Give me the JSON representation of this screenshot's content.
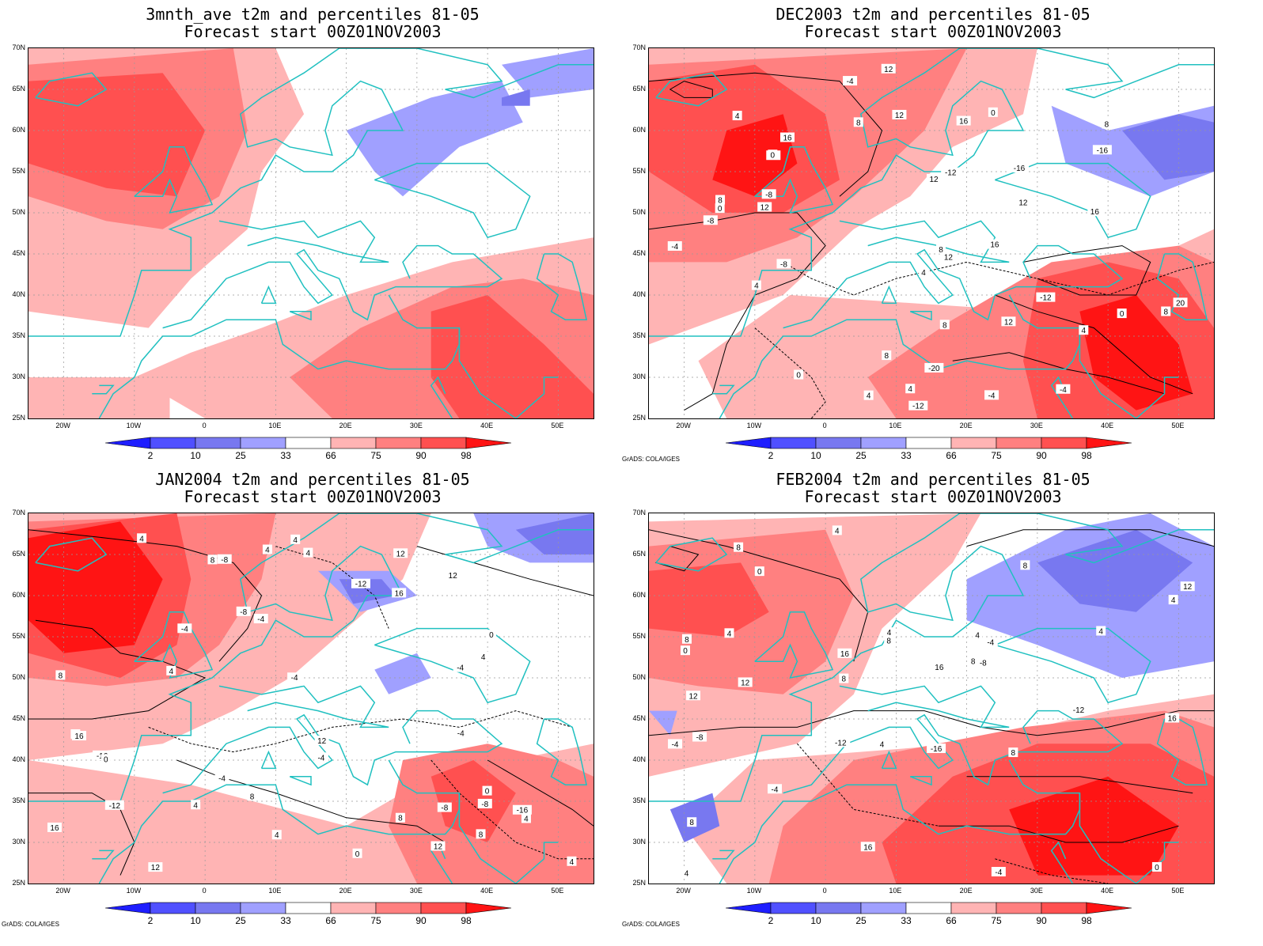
{
  "panels": [
    {
      "title_line1": "3mnth_ave t2m and percentiles 81-05",
      "title_line2": "Forecast start 00Z01NOV2003",
      "credit": "",
      "contours": false,
      "variant": "ave"
    },
    {
      "title_line1": "DEC2003 t2m and percentiles 81-05",
      "title_line2": "Forecast start 00Z01NOV2003",
      "credit": "GrADS: COLA/IGES",
      "contours": true,
      "variant": "dec"
    },
    {
      "title_line1": "JAN2004 t2m and percentiles 81-05",
      "title_line2": "Forecast start 00Z01NOV2003",
      "credit": "GrADS: COLA/IGES",
      "contours": true,
      "variant": "jan"
    },
    {
      "title_line1": "FEB2004 t2m and percentiles 81-05",
      "title_line2": "Forecast start 00Z01NOV2003",
      "credit": "GrADS: COLA/IGES",
      "contours": true,
      "variant": "feb"
    }
  ],
  "lat_labels": [
    "70N",
    "65N",
    "60N",
    "55N",
    "50N",
    "45N",
    "40N",
    "35N",
    "30N",
    "25N"
  ],
  "lon_labels": [
    "20W",
    "10W",
    "0",
    "10E",
    "20E",
    "30E",
    "40E",
    "50E"
  ],
  "colorbar": {
    "labels": [
      "2",
      "10",
      "25",
      "33",
      "66",
      "75",
      "90",
      "98"
    ],
    "colors": [
      "#1e1eff",
      "#5050ff",
      "#7878f0",
      "#a0a0ff",
      "#ffffff",
      "#ffb4b4",
      "#ff8080",
      "#ff5050",
      "#ff1414"
    ]
  },
  "colors": {
    "coast": "#20c0c0",
    "contour": "#000000"
  },
  "contour_labels": {
    "dec": [
      "4",
      "-4",
      "0",
      "4",
      "-12",
      "-8",
      "-8",
      "-4",
      "0",
      "-12",
      "-8",
      "-12",
      "-16",
      "8",
      "12",
      "4",
      "8",
      "-4",
      "0",
      "-4",
      "0",
      "4",
      "8",
      "12",
      "4",
      "8",
      "0",
      "-4",
      "8",
      "12",
      "4",
      "16",
      "16",
      "12",
      "-16",
      "8",
      "8",
      "16",
      "12",
      "16",
      "20",
      "-20",
      "12",
      "12"
    ],
    "jan": [
      "-8",
      "-4",
      "0",
      "4",
      "4",
      "8",
      "4",
      "4",
      "-12",
      "-16",
      "-12",
      "-8",
      "-16",
      "-4",
      "0",
      "12",
      "4",
      "8",
      "12",
      "-4",
      "0",
      "-4",
      "4",
      "0",
      "-4",
      "4",
      "8",
      "-4",
      "-8",
      "-8",
      "0",
      "4",
      "4",
      "-4",
      "8",
      "16",
      "4",
      "8",
      "12",
      "12",
      "16",
      "16",
      "12"
    ],
    "feb": [
      "-4",
      "-8",
      "0",
      "4",
      "8",
      "4",
      "-12",
      "-8",
      "-12",
      "-16",
      "0",
      "-4",
      "4",
      "8",
      "4",
      "4",
      "8",
      "8",
      "4",
      "-4",
      "0",
      "8",
      "4",
      "8",
      "4",
      "-4",
      "8",
      "12",
      "12",
      "12",
      "16",
      "16",
      "16",
      "8",
      "16"
    ]
  }
}
